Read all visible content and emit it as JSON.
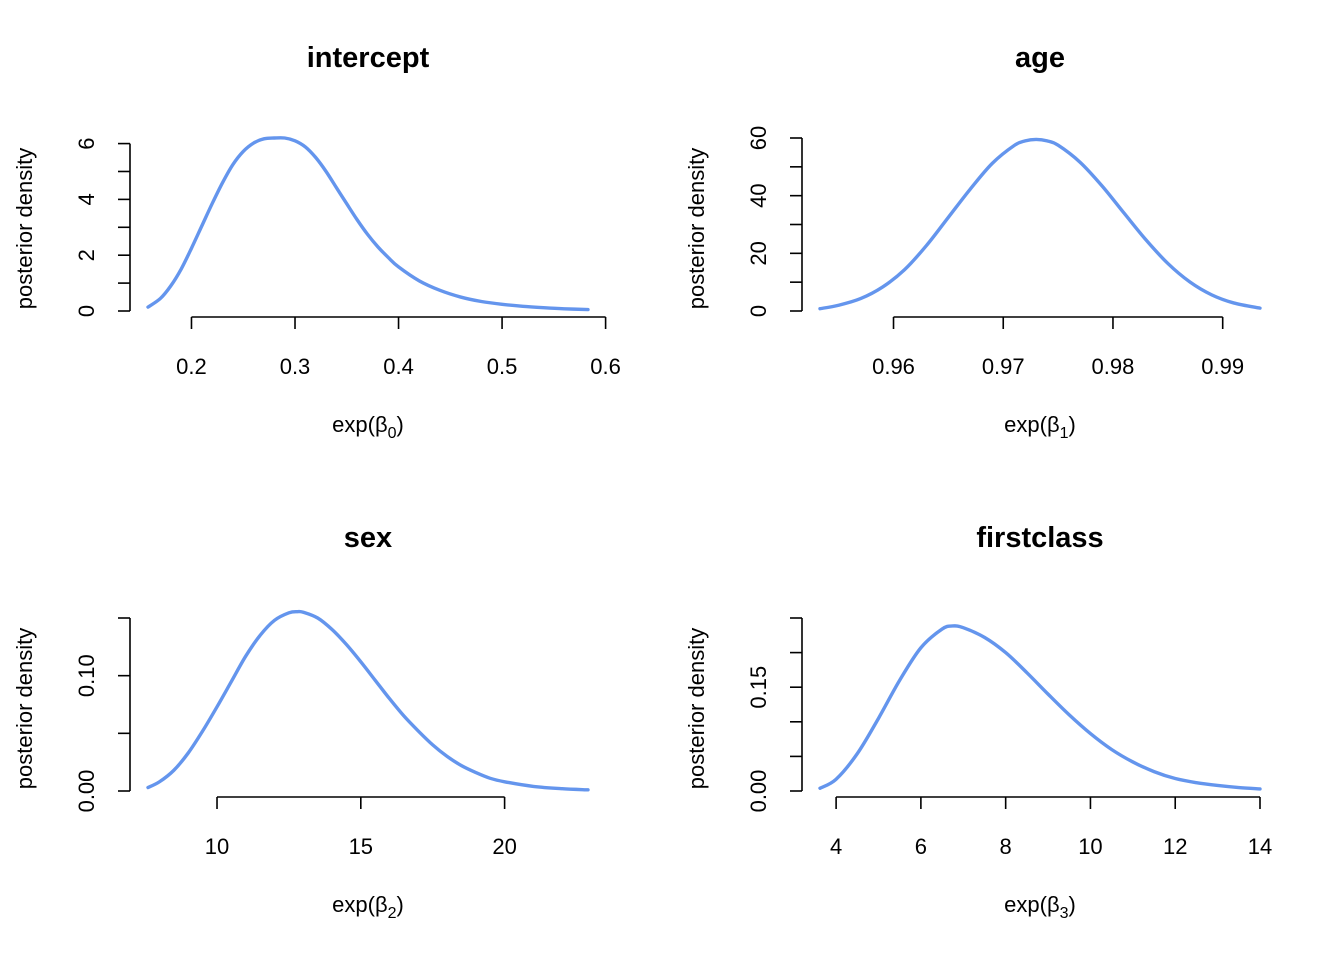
{
  "figure": {
    "curve_color": "#6495ED"
  },
  "chart_data": [
    {
      "type": "line",
      "title": "intercept",
      "xlabel": "exp(β0)",
      "xlabel_base": "exp(",
      "xlabel_symbol": "β",
      "xlabel_sub": "0",
      "xlabel_close": ")",
      "ylabel": "posterior density",
      "xlim": [
        0.158,
        0.583
      ],
      "ylim": [
        0,
        6.2
      ],
      "xticks": [
        0.2,
        0.3,
        0.4,
        0.5,
        0.6
      ],
      "xtick_labels": [
        "0.2",
        "0.3",
        "0.4",
        "0.5",
        "0.6"
      ],
      "yticks": [
        0,
        1,
        2,
        3,
        4,
        5,
        6
      ],
      "yticks_labeled": [
        0,
        2,
        4,
        6
      ],
      "ytick_labels": [
        "0",
        "2",
        "4",
        "6"
      ],
      "series": [
        {
          "x": [
            0.158,
            0.17,
            0.18,
            0.19,
            0.2,
            0.21,
            0.22,
            0.23,
            0.24,
            0.25,
            0.26,
            0.27,
            0.28,
            0.29,
            0.3,
            0.31,
            0.32,
            0.33,
            0.34,
            0.35,
            0.36,
            0.37,
            0.38,
            0.39,
            0.4,
            0.42,
            0.44,
            0.46,
            0.48,
            0.5,
            0.52,
            0.54,
            0.56,
            0.583
          ],
          "y": [
            0.14,
            0.45,
            0.9,
            1.5,
            2.25,
            3.05,
            3.85,
            4.6,
            5.25,
            5.72,
            6.02,
            6.17,
            6.2,
            6.2,
            6.1,
            5.88,
            5.5,
            5.0,
            4.42,
            3.84,
            3.27,
            2.75,
            2.3,
            1.92,
            1.58,
            1.08,
            0.74,
            0.5,
            0.34,
            0.24,
            0.17,
            0.12,
            0.08,
            0.05
          ]
        }
      ]
    },
    {
      "type": "line",
      "title": "age",
      "xlabel": "exp(β1)",
      "xlabel_base": "exp(",
      "xlabel_symbol": "β",
      "xlabel_sub": "1",
      "xlabel_close": ")",
      "ylabel": "posterior density",
      "xlim": [
        0.9533,
        0.9934
      ],
      "ylim": [
        0,
        60
      ],
      "xticks": [
        0.96,
        0.97,
        0.98,
        0.99
      ],
      "xtick_labels": [
        "0.96",
        "0.97",
        "0.98",
        "0.99"
      ],
      "yticks": [
        0,
        10,
        20,
        30,
        40,
        50,
        60
      ],
      "yticks_labeled": [
        0,
        20,
        40,
        60
      ],
      "ytick_labels": [
        "0",
        "20",
        "40",
        "60"
      ],
      "series": [
        {
          "x": [
            0.9533,
            0.955,
            0.957,
            0.959,
            0.961,
            0.963,
            0.965,
            0.967,
            0.969,
            0.971,
            0.972,
            0.973,
            0.974,
            0.975,
            0.977,
            0.979,
            0.981,
            0.983,
            0.985,
            0.987,
            0.989,
            0.991,
            0.9934
          ],
          "y": [
            0.8,
            2.0,
            4.3,
            8.3,
            14.3,
            22.7,
            32.5,
            42.3,
            51.2,
            57.4,
            59.0,
            59.5,
            59.0,
            57.5,
            51.6,
            43.4,
            34.0,
            24.7,
            16.5,
            10.1,
            5.6,
            2.8,
            1.0
          ]
        }
      ]
    },
    {
      "type": "line",
      "title": "sex",
      "xlabel": "exp(β2)",
      "xlabel_base": "exp(",
      "xlabel_symbol": "β",
      "xlabel_sub": "2",
      "xlabel_close": ")",
      "ylabel": "posterior density",
      "xlim": [
        7.6,
        22.9
      ],
      "ylim": [
        0,
        0.15
      ],
      "xticks": [
        10,
        15,
        20
      ],
      "xtick_labels": [
        "10",
        "15",
        "20"
      ],
      "yticks": [
        0,
        0.05,
        0.1,
        0.15
      ],
      "yticks_labeled": [
        0,
        0.1
      ],
      "ytick_labels": [
        "0.00",
        "0.10"
      ],
      "series": [
        {
          "x": [
            7.6,
            8,
            8.5,
            9,
            9.5,
            10,
            10.5,
            11,
            11.5,
            12,
            12.5,
            12.8,
            13,
            13.5,
            14,
            14.5,
            15,
            15.5,
            16,
            16.5,
            17,
            17.5,
            18,
            18.5,
            19,
            19.5,
            20,
            21,
            22,
            22.9
          ],
          "y": [
            0.003,
            0.008,
            0.018,
            0.033,
            0.052,
            0.073,
            0.095,
            0.117,
            0.135,
            0.148,
            0.1545,
            0.1555,
            0.155,
            0.15,
            0.14,
            0.127,
            0.112,
            0.096,
            0.08,
            0.065,
            0.052,
            0.04,
            0.03,
            0.022,
            0.016,
            0.011,
            0.008,
            0.004,
            0.002,
            0.001
          ]
        }
      ]
    },
    {
      "type": "line",
      "title": "firstclass",
      "xlabel": "exp(β3)",
      "xlabel_base": "exp(",
      "xlabel_symbol": "β",
      "xlabel_sub": "3",
      "xlabel_close": ")",
      "ylabel": "posterior density",
      "xlim": [
        3.62,
        14.0
      ],
      "ylim": [
        0,
        0.25
      ],
      "xticks": [
        4,
        6,
        8,
        10,
        12,
        14
      ],
      "xtick_labels": [
        "4",
        "6",
        "8",
        "10",
        "12",
        "14"
      ],
      "yticks": [
        0,
        0.05,
        0.1,
        0.15,
        0.2,
        0.25
      ],
      "yticks_labeled": [
        0,
        0.15
      ],
      "ytick_labels": [
        "0.00",
        "0.15"
      ],
      "series": [
        {
          "x": [
            3.62,
            4,
            4.5,
            5,
            5.5,
            6,
            6.5,
            6.75,
            7,
            7.5,
            8,
            8.5,
            9,
            9.5,
            10,
            10.5,
            11,
            11.5,
            12,
            12.5,
            13,
            13.5,
            14
          ],
          "y": [
            0.004,
            0.017,
            0.054,
            0.105,
            0.16,
            0.207,
            0.234,
            0.2385,
            0.236,
            0.222,
            0.2,
            0.171,
            0.14,
            0.11,
            0.083,
            0.06,
            0.042,
            0.028,
            0.018,
            0.012,
            0.008,
            0.005,
            0.003
          ]
        }
      ]
    }
  ]
}
